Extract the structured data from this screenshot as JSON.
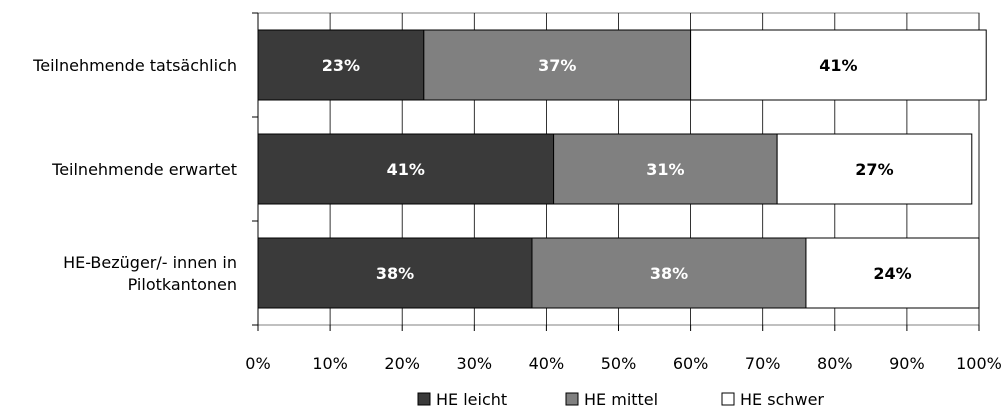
{
  "chart_data": {
    "type": "bar",
    "orientation": "horizontal",
    "stacked": true,
    "percent_stacked": true,
    "categories": [
      "Teilnehmende tatsächlich",
      "Teilnehmende erwartet",
      "HE-Bezüger/- innen in Pilotkantonen"
    ],
    "category_lines": [
      [
        "Teilnehmende tatsächlich"
      ],
      [
        "Teilnehmende erwartet"
      ],
      [
        "HE-Bezüger/- innen in",
        "Pilotkantonen"
      ]
    ],
    "series": [
      {
        "name": "HE leicht",
        "values": [
          23,
          41,
          38
        ],
        "labels": [
          "23%",
          "41%",
          "38%"
        ],
        "color": "#3a3a3a",
        "label_color": "#ffffff"
      },
      {
        "name": "HE mittel",
        "values": [
          37,
          31,
          38
        ],
        "labels": [
          "37%",
          "31%",
          "38%"
        ],
        "color": "#808080",
        "label_color": "#ffffff"
      },
      {
        "name": "HE schwer",
        "values": [
          41,
          27,
          24
        ],
        "labels": [
          "41%",
          "27%",
          "24%"
        ],
        "color": "#ffffff",
        "label_color": "#000000"
      }
    ],
    "x_ticks": [
      "0%",
      "10%",
      "20%",
      "30%",
      "40%",
      "50%",
      "60%",
      "70%",
      "80%",
      "90%",
      "100%"
    ],
    "xlim": [
      0,
      100
    ],
    "grid": true,
    "legend_position": "bottom",
    "title": "",
    "xlabel": "",
    "ylabel": ""
  }
}
